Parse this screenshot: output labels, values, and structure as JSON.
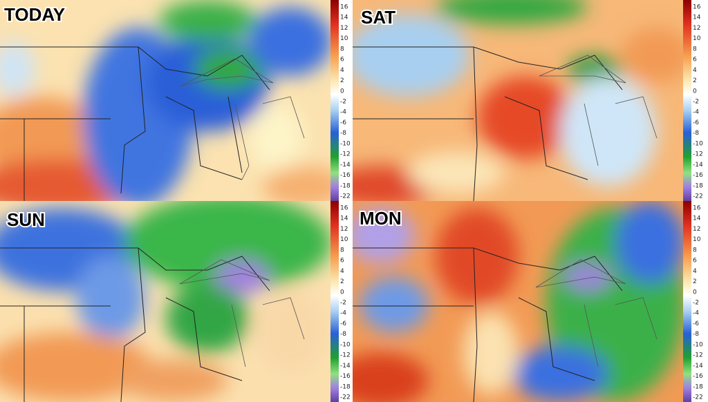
{
  "panels": [
    {
      "title": "TODAY"
    },
    {
      "title": "SAT"
    },
    {
      "title": "SUN"
    },
    {
      "title": "MON"
    }
  ],
  "colorbar": {
    "labels": [
      16,
      14,
      12,
      10,
      8,
      6,
      4,
      2,
      0,
      -2,
      -4,
      -6,
      -8,
      -10,
      -12,
      -14,
      -16,
      -18,
      -22
    ]
  }
}
